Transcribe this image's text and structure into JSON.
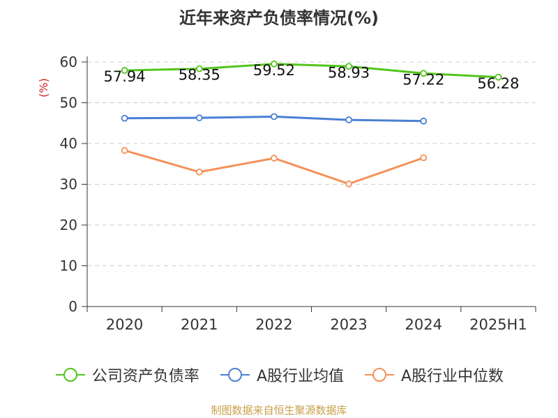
{
  "chart_data": {
    "type": "line",
    "title": "近年来资产负债率情况(%)",
    "ylabel": "(%)",
    "xlabel": "",
    "categories": [
      "2020",
      "2021",
      "2022",
      "2023",
      "2024",
      "2025H1"
    ],
    "ylim": [
      0,
      60
    ],
    "yticks": [
      0,
      10,
      20,
      30,
      40,
      50,
      60
    ],
    "grid": true,
    "legend_position": "bottom",
    "series": [
      {
        "name": "公司资产负债率",
        "color": "#52c41a",
        "values": [
          57.94,
          58.35,
          59.52,
          58.93,
          57.22,
          56.28
        ],
        "labels": [
          "57.94",
          "58.35",
          "59.52",
          "58.93",
          "57.22",
          "56.28"
        ]
      },
      {
        "name": "A股行业均值",
        "color": "#4a7fd4",
        "values": [
          46.2,
          46.3,
          46.6,
          45.8,
          45.5,
          null
        ]
      },
      {
        "name": "A股行业中位数",
        "color": "#f4915a",
        "values": [
          38.3,
          33.0,
          36.4,
          30.1,
          36.5,
          null
        ]
      }
    ]
  },
  "source_note": "制图数据来自恒生聚源数据库"
}
